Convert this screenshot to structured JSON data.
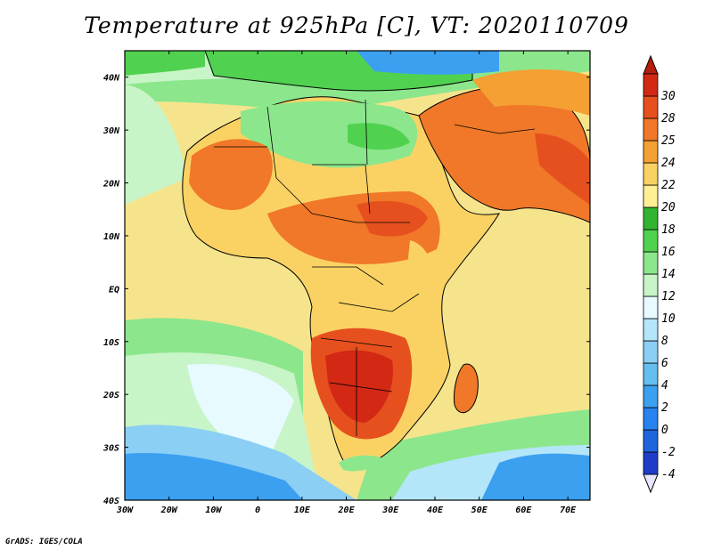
{
  "title": "Temperature at 925hPa [C], VT: 2020110709",
  "footer": "GrADS: IGES/COLA",
  "map": {
    "lon_labels": [
      "30W",
      "20W",
      "10W",
      "0",
      "10E",
      "20E",
      "30E",
      "40E",
      "50E",
      "60E",
      "70E"
    ],
    "lat_labels": [
      "40N",
      "30N",
      "20N",
      "10N",
      "EQ",
      "10S",
      "20S",
      "30S",
      "40S"
    ],
    "extent": {
      "lon": [
        -30,
        75
      ],
      "lat": [
        -40,
        45
      ]
    }
  },
  "colorbar": {
    "levels": [
      "-4",
      "-2",
      "0",
      "2",
      "4",
      "6",
      "8",
      "10",
      "12",
      "14",
      "16",
      "18",
      "20",
      "22",
      "24",
      "25",
      "28",
      "30"
    ],
    "colors": [
      "#1a1aa0",
      "#1e3cc8",
      "#1e64dc",
      "#2882f0",
      "#3ca0f0",
      "#64bef0",
      "#8ccff5",
      "#b4e6fa",
      "#e6faff",
      "#c8f5c8",
      "#8ce68c",
      "#50d250",
      "#32b432",
      "#fff096",
      "#fad264",
      "#f5a032",
      "#f07828",
      "#e6501e",
      "#d22814",
      "#b41e0a"
    ]
  }
}
